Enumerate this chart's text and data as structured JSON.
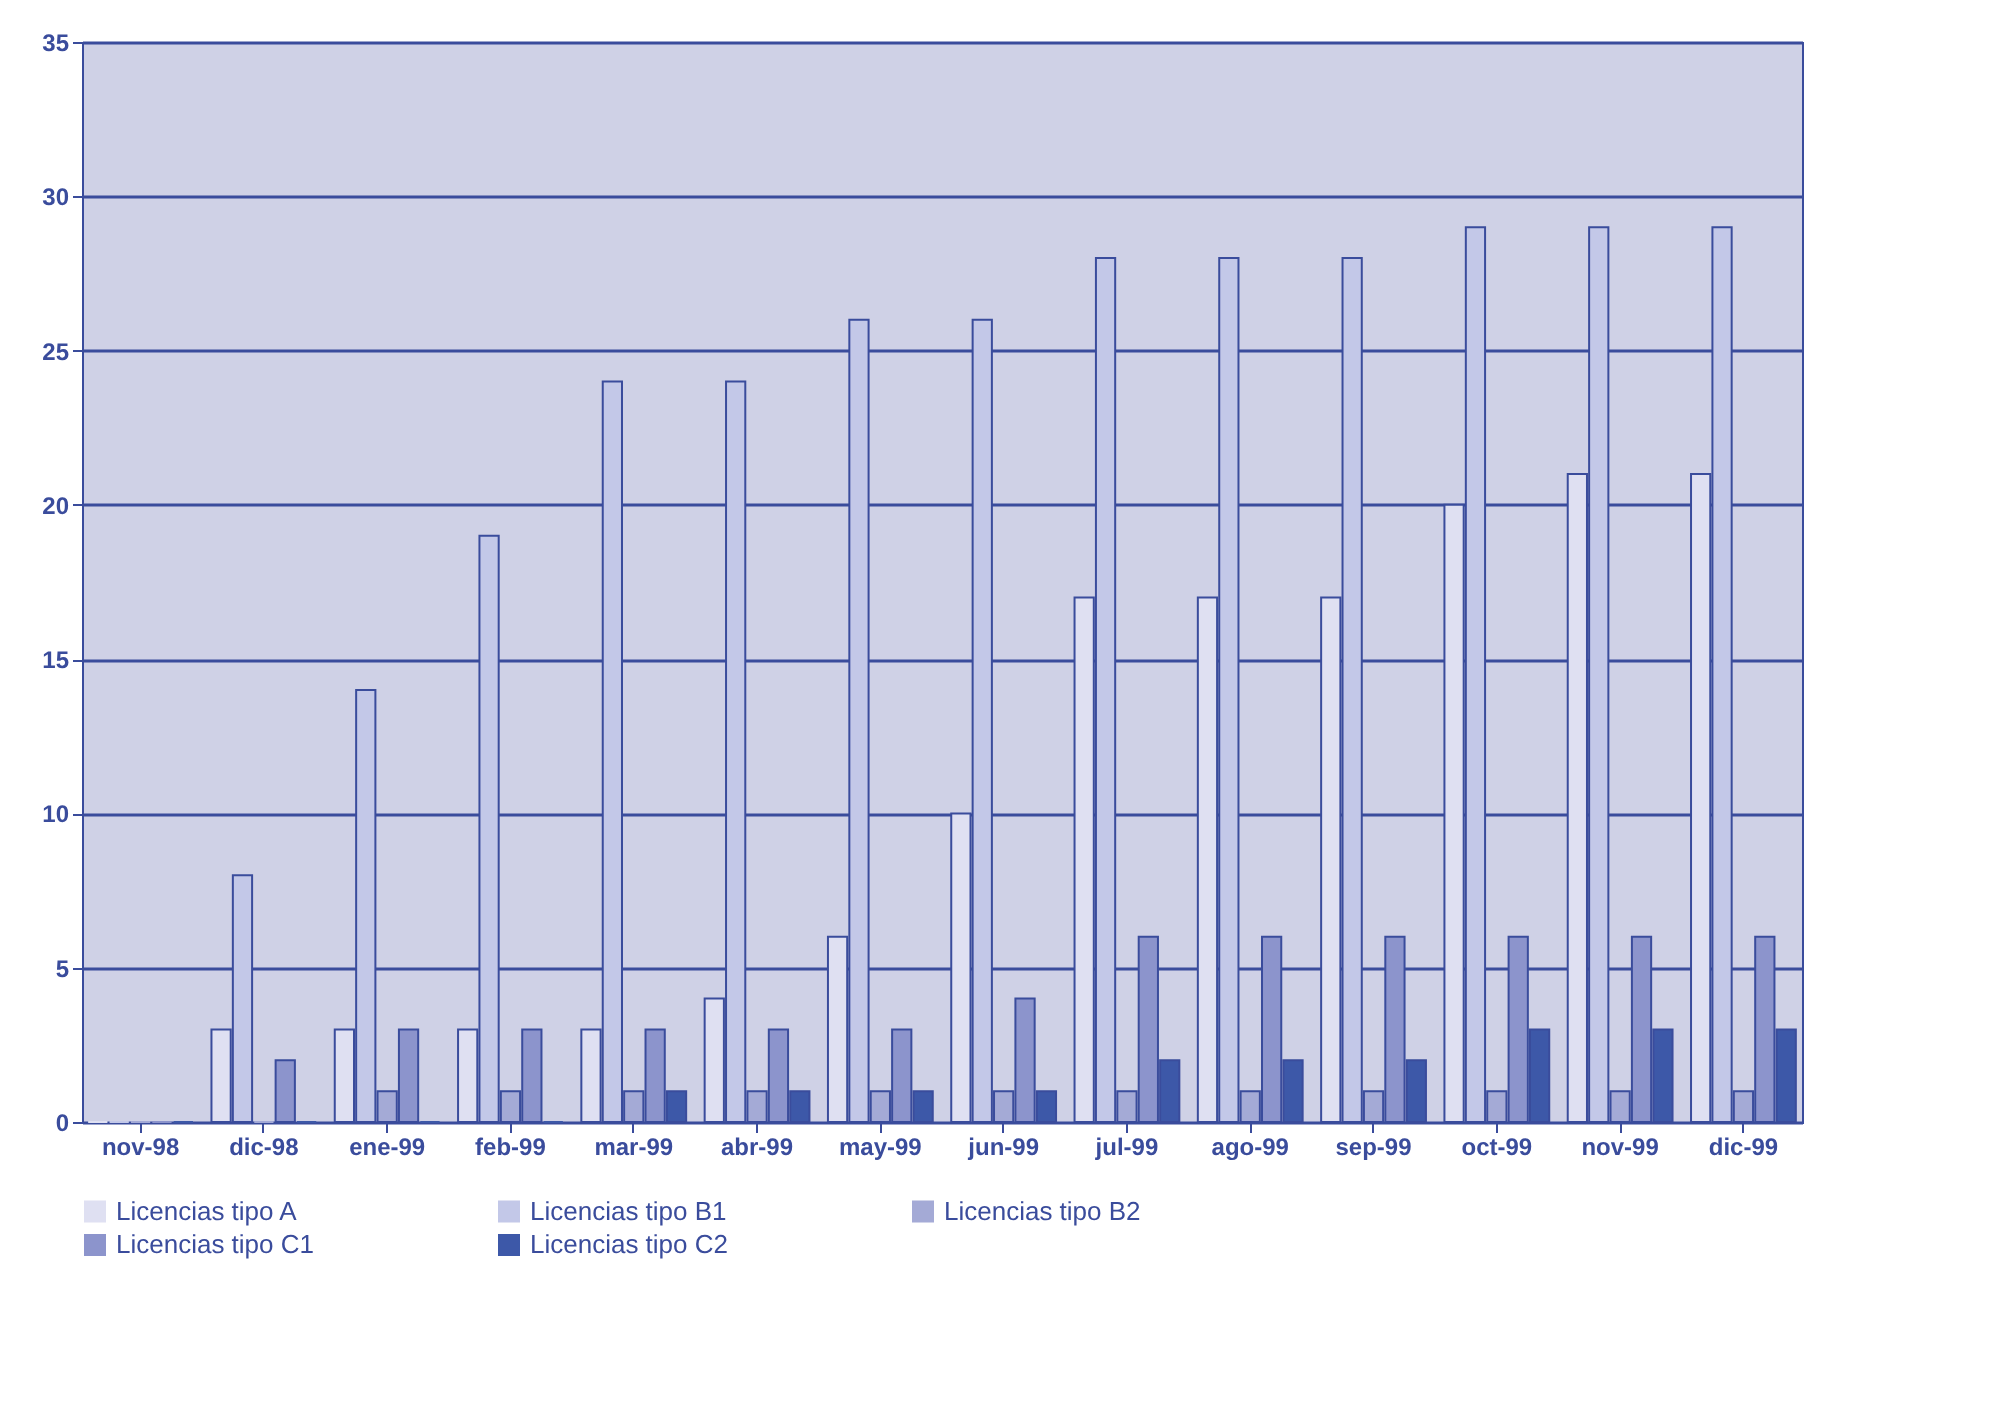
{
  "chart_data": {
    "type": "bar",
    "categories": [
      "nov-98",
      "dic-98",
      "ene-99",
      "feb-99",
      "mar-99",
      "abr-99",
      "may-99",
      "jun-99",
      "jul-99",
      "ago-99",
      "sep-99",
      "oct-99",
      "nov-99",
      "dic-99"
    ],
    "series": [
      {
        "name": "Licencias tipo A",
        "color": "#dfe0f2",
        "values": [
          0,
          3,
          3,
          3,
          3,
          4,
          6,
          10,
          17,
          17,
          17,
          20,
          21,
          21
        ]
      },
      {
        "name": "Licencias tipo B1",
        "color": "#c3c8e8",
        "values": [
          0,
          8,
          14,
          19,
          24,
          24,
          26,
          26,
          28,
          28,
          28,
          29,
          29,
          29
        ]
      },
      {
        "name": "Licencias tipo B2",
        "color": "#a4aad6",
        "values": [
          0,
          0,
          1,
          1,
          1,
          1,
          1,
          1,
          1,
          1,
          1,
          1,
          1,
          1
        ]
      },
      {
        "name": "Licencias tipo C1",
        "color": "#8c94cc",
        "values": [
          0,
          2,
          3,
          3,
          3,
          3,
          3,
          4,
          6,
          6,
          6,
          6,
          6,
          6
        ]
      },
      {
        "name": "Licencias tipo C2",
        "color": "#3d58a8",
        "values": [
          0,
          0,
          0,
          0,
          1,
          1,
          1,
          1,
          2,
          2,
          2,
          3,
          3,
          3
        ]
      }
    ],
    "ylim": [
      0,
      35
    ],
    "yticks": [
      0,
      5,
      10,
      15,
      20,
      25,
      30,
      35
    ],
    "grid": "y",
    "legend": "bottom"
  }
}
